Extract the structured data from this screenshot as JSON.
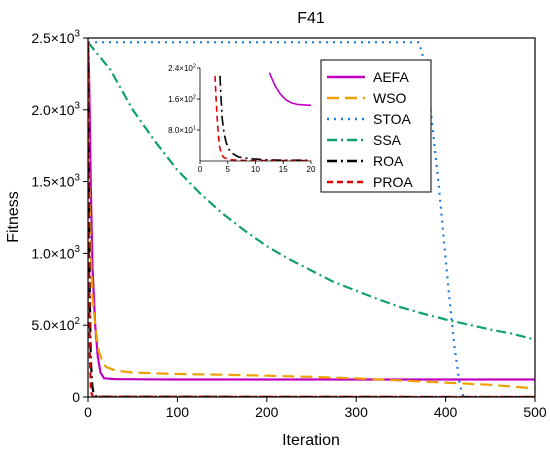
{
  "chart_data": {
    "type": "line",
    "title": "F41",
    "xlabel": "Iteration",
    "ylabel": "Fitness",
    "xlim": [
      0,
      500
    ],
    "ylim": [
      0,
      2500
    ],
    "grid": false,
    "legend_position": "top-right",
    "x_ticks": [
      0,
      100,
      200,
      300,
      400,
      500
    ],
    "x_tick_labels": [
      "0",
      "100",
      "200",
      "300",
      "400",
      "500"
    ],
    "y_ticks": [
      0,
      500,
      1000,
      1500,
      2000,
      2500
    ],
    "y_tick_labels": [
      {
        "base": "0",
        "exp": ""
      },
      {
        "base": "5.0×10",
        "exp": "2"
      },
      {
        "base": "1.0×10",
        "exp": "3"
      },
      {
        "base": "1.5×10",
        "exp": "3"
      },
      {
        "base": "2.0×10",
        "exp": "3"
      },
      {
        "base": "2.5×10",
        "exp": "3"
      }
    ],
    "series": [
      {
        "name": "AEFA",
        "color": "#c000c0",
        "dash": "solid",
        "x": [
          0,
          1,
          2,
          3,
          5,
          8,
          11,
          14,
          18,
          30,
          60,
          100,
          200,
          300,
          400,
          500
        ],
        "y": [
          2470,
          2300,
          1950,
          1500,
          900,
          500,
          280,
          170,
          130,
          125,
          123,
          122,
          122,
          122,
          122,
          122
        ]
      },
      {
        "name": "WSO",
        "color": "#f0a000",
        "dash": "long-dash",
        "x": [
          0,
          1,
          3,
          5,
          8,
          12,
          16,
          20,
          30,
          50,
          100,
          150,
          200,
          250,
          300,
          350,
          400,
          450,
          500
        ],
        "y": [
          2470,
          1600,
          1000,
          700,
          500,
          320,
          250,
          210,
          185,
          170,
          160,
          155,
          148,
          140,
          130,
          115,
          100,
          85,
          60
        ]
      },
      {
        "name": "STOA",
        "color": "#1a7ce0",
        "dash": "dot",
        "x": [
          0,
          300,
          370,
          378,
          385,
          392,
          398,
          404,
          410,
          416,
          420,
          500
        ],
        "y": [
          2470,
          2470,
          2470,
          2300,
          1900,
          1500,
          1100,
          700,
          350,
          80,
          0,
          0
        ]
      },
      {
        "name": "SSA",
        "color": "#10a070",
        "dash": "dash-dot",
        "x": [
          0,
          25,
          50,
          75,
          100,
          125,
          150,
          175,
          200,
          225,
          250,
          275,
          300,
          325,
          350,
          375,
          400,
          425,
          450,
          475,
          500
        ],
        "y": [
          2470,
          2280,
          2000,
          1780,
          1580,
          1420,
          1280,
          1160,
          1050,
          960,
          880,
          800,
          740,
          680,
          625,
          580,
          540,
          505,
          470,
          440,
          400
        ]
      },
      {
        "name": "ROA",
        "color": "#000000",
        "dash": "dash-dot",
        "x": [
          0,
          1,
          2,
          3,
          4,
          5,
          6,
          8,
          10,
          500
        ],
        "y": [
          2470,
          1500,
          700,
          300,
          150,
          70,
          30,
          10,
          2,
          0
        ]
      },
      {
        "name": "PROA",
        "color": "#e00000",
        "dash": "short-dash",
        "x": [
          0,
          1,
          2,
          3,
          4,
          6,
          500
        ],
        "y": [
          2470,
          1100,
          300,
          80,
          20,
          2,
          0
        ]
      }
    ],
    "inset": {
      "xlim": [
        0,
        20
      ],
      "ylim": [
        0,
        240
      ],
      "x_ticks": [
        0,
        5,
        10,
        15,
        20
      ],
      "x_tick_labels": [
        "0",
        "5",
        "10",
        "15",
        "20"
      ],
      "y_ticks": [
        80,
        160,
        240
      ],
      "y_tick_labels": [
        {
          "base": "8.0×10",
          "exp": "1"
        },
        {
          "base": "1.6×10",
          "exp": "2"
        },
        {
          "base": "2.4×10",
          "exp": "2"
        }
      ],
      "series": [
        {
          "name": "AEFA",
          "color": "#c000c0",
          "dash": "solid",
          "x": [
            12.5,
            13.5,
            14.5,
            15.5,
            16.5,
            17.5,
            18.5,
            19.5,
            20
          ],
          "y": [
            228,
            195,
            172,
            158,
            150,
            146,
            145,
            144,
            144
          ]
        },
        {
          "name": "ROA",
          "color": "#000000",
          "dash": "dash-dot",
          "x": [
            3.6,
            3.8,
            4.0,
            4.3,
            4.7,
            5.2,
            6.0,
            7.0,
            9.0,
            12.0,
            15.0,
            20.0
          ],
          "y": [
            220,
            160,
            110,
            75,
            48,
            30,
            18,
            10,
            6,
            3,
            2,
            2
          ]
        },
        {
          "name": "PROA",
          "color": "#e00000",
          "dash": "short-dash",
          "x": [
            2.7,
            2.9,
            3.1,
            3.3,
            3.5,
            3.8,
            4.2,
            5.0,
            6.5,
            10.0,
            20.0
          ],
          "y": [
            220,
            160,
            110,
            70,
            40,
            20,
            10,
            4,
            2,
            1,
            1
          ]
        }
      ]
    }
  }
}
